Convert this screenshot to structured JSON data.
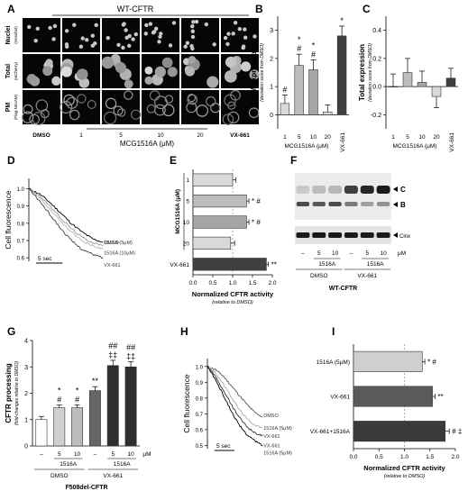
{
  "panels": {
    "A": "A",
    "B": "B",
    "C": "C",
    "D": "D",
    "E": "E",
    "F": "F",
    "G": "G",
    "H": "H",
    "I": "I"
  },
  "panel_a": {
    "title": "WT-CFTR",
    "rows": [
      {
        "label": "Nuclei",
        "sub": "(Hoechst)"
      },
      {
        "label": "Total",
        "sub": "(mCherry)"
      },
      {
        "label": "PM",
        "sub": "(Flag-NIrcAM)"
      }
    ],
    "columns": [
      "DMSO",
      "1",
      "5",
      "10",
      "20",
      "VX-661"
    ],
    "group_label": "MCG1516A (μM)"
  },
  "chart_data": [
    {
      "panel": "B",
      "type": "bar",
      "categories": [
        "1",
        "5",
        "10",
        "20",
        "VX-661"
      ],
      "values": [
        0.4,
        1.75,
        1.6,
        0.1,
        2.8
      ],
      "errors": [
        0.3,
        0.4,
        0.35,
        0.25,
        0.35
      ],
      "colors": [
        "#d9d9d9",
        "#bdbdbd",
        "#a6a6a6",
        "#d9d9d9",
        "#404040"
      ],
      "annotations": [
        [
          "#"
        ],
        [
          "*",
          "#"
        ],
        [
          "*",
          "#"
        ],
        [
          ""
        ],
        [
          "*"
        ]
      ],
      "ylim": [
        -0.5,
        3.5
      ],
      "yticks": [
        0,
        1,
        2,
        3
      ],
      "ylabel": "PM expression",
      "ylabel_sub": "(deviation score from DMSO)",
      "xgroup_label": "MCG1516A (μM)"
    },
    {
      "panel": "C",
      "type": "bar",
      "categories": [
        "1",
        "5",
        "10",
        "20",
        "VX-661"
      ],
      "values": [
        0.0,
        0.1,
        0.03,
        -0.07,
        0.06
      ],
      "errors": [
        0.09,
        0.1,
        0.08,
        0.08,
        0.07
      ],
      "colors": [
        "#d9d9d9",
        "#bdbdbd",
        "#a6a6a6",
        "#d9d9d9",
        "#404040"
      ],
      "ylim": [
        -0.3,
        0.5
      ],
      "yticks": [
        -0.2,
        0.0,
        0.2,
        0.4
      ],
      "ylabel": "Total expression",
      "ylabel_sub": "(deviation score from DMSO)",
      "xgroup_label": "MCG1516A (μM)"
    },
    {
      "panel": "D",
      "type": "line",
      "ylabel": "Cell fluorescence",
      "yticks": [
        0.6,
        0.7,
        0.8,
        0.9,
        1.0
      ],
      "ylim": [
        0.58,
        1.06
      ],
      "xlim": [
        0,
        16
      ],
      "scale_bar": "5 sec",
      "series": [
        {
          "name": "DMSO",
          "color": "#000000",
          "x": [
            0,
            2,
            4,
            6,
            8,
            10,
            12,
            14
          ],
          "y": [
            1.0,
            0.97,
            0.92,
            0.86,
            0.8,
            0.75,
            0.71,
            0.69
          ]
        },
        {
          "name": "1516A (5μM)",
          "color": "#9a9a9a",
          "x": [
            0,
            2,
            4,
            6,
            8,
            10,
            12,
            14
          ],
          "y": [
            1.0,
            0.96,
            0.9,
            0.83,
            0.77,
            0.72,
            0.69,
            0.67
          ]
        },
        {
          "name": "1516A (10μM)",
          "color": "#b5b5b5",
          "x": [
            0,
            2,
            4,
            6,
            8,
            10,
            12,
            14
          ],
          "y": [
            1.0,
            0.95,
            0.88,
            0.81,
            0.75,
            0.7,
            0.67,
            0.65
          ]
        },
        {
          "name": "VX-661",
          "color": "#444444",
          "x": [
            0,
            2,
            4,
            6,
            8,
            10,
            12,
            14
          ],
          "y": [
            1.0,
            0.93,
            0.85,
            0.77,
            0.7,
            0.65,
            0.62,
            0.6
          ]
        }
      ]
    },
    {
      "panel": "E",
      "type": "bar",
      "orientation": "horizontal",
      "categories": [
        "1",
        "5",
        "10",
        "20",
        "VX-661"
      ],
      "values": [
        1.0,
        1.35,
        1.35,
        0.95,
        1.85
      ],
      "errors": [
        0.08,
        0.06,
        0.06,
        0.1,
        0.05
      ],
      "colors": [
        "#d9d9d9",
        "#bdbdbd",
        "#a6a6a6",
        "#d9d9d9",
        "#404040"
      ],
      "annotations": [
        "",
        "* #",
        "* #",
        "",
        "**"
      ],
      "xlim": [
        0,
        2.0
      ],
      "xticks": [
        "0.0",
        "0.5",
        "1.0",
        "1.5",
        "2.0"
      ],
      "xlabel": "Normalized CFTR activity",
      "xlabel_sub": "(relative to DMSO)",
      "ygroup_label": "MCG1516A (μM)"
    },
    {
      "panel": "G",
      "type": "bar",
      "categories": [
        "–",
        "5",
        "10",
        "–",
        "5",
        "10"
      ],
      "values": [
        1.0,
        1.45,
        1.45,
        2.1,
        3.05,
        3.0
      ],
      "errors": [
        0.12,
        0.1,
        0.1,
        0.15,
        0.2,
        0.2
      ],
      "colors": [
        "#ffffff",
        "#d0d0d0",
        "#bdbdbd",
        "#666666",
        "#2f2f2f",
        "#2f2f2f"
      ],
      "annotations": [
        [
          ""
        ],
        [
          "*",
          "#"
        ],
        [
          "*",
          "#"
        ],
        [
          "**"
        ],
        [
          "##",
          "‡‡"
        ],
        [
          "##",
          "‡‡"
        ]
      ],
      "ylim": [
        0,
        4
      ],
      "yticks": [
        0,
        1,
        2,
        3,
        4
      ],
      "ylabel": "CFTR processing",
      "ylabel_sub": "(fold-changes relative to DMSO)",
      "unit": "μM",
      "subgroups": [
        "1516A",
        "1516A"
      ],
      "groups": [
        "DMSO",
        "VX-661"
      ],
      "footer": "F508del-CFTR"
    },
    {
      "panel": "H",
      "type": "line",
      "ylabel": "Cell fluorescence",
      "yticks": [
        0.5,
        0.6,
        0.7,
        0.8,
        0.9,
        1.0
      ],
      "ylim": [
        0.48,
        1.05
      ],
      "xlim": [
        0,
        16
      ],
      "scale_bar": "5 sec",
      "series": [
        {
          "name": "DMSO",
          "color": "#555555",
          "x": [
            0,
            2,
            4,
            6,
            8,
            10,
            12,
            14
          ],
          "y": [
            1.0,
            0.98,
            0.94,
            0.88,
            0.82,
            0.76,
            0.71,
            0.68
          ]
        },
        {
          "name": "1516A (5μM)",
          "color": "#aaaaaa",
          "x": [
            0,
            2,
            4,
            6,
            8,
            10,
            12,
            14
          ],
          "y": [
            1.0,
            0.96,
            0.89,
            0.81,
            0.73,
            0.67,
            0.63,
            0.61
          ]
        },
        {
          "name": "VX-661",
          "color": "#333333",
          "x": [
            0,
            2,
            4,
            6,
            8,
            10,
            12,
            14
          ],
          "y": [
            1.0,
            0.94,
            0.85,
            0.76,
            0.68,
            0.62,
            0.58,
            0.56
          ]
        },
        {
          "name": "VX-661\n1516A (5μM)",
          "color": "#000000",
          "x": [
            0,
            2,
            4,
            6,
            8,
            10,
            12,
            14
          ],
          "y": [
            1.0,
            0.92,
            0.82,
            0.72,
            0.63,
            0.57,
            0.53,
            0.5
          ]
        }
      ]
    },
    {
      "panel": "I",
      "type": "bar",
      "orientation": "horizontal",
      "categories": [
        "1516A (5μM)",
        "VX-661",
        "VX-661+1516A"
      ],
      "values": [
        1.35,
        1.55,
        1.8
      ],
      "errors": [
        0.05,
        0.05,
        0.08
      ],
      "colors": [
        "#cfcfcf",
        "#5a5a5a",
        "#3a3a3a"
      ],
      "annotations": [
        "* #",
        "**",
        "# ‡"
      ],
      "xlim": [
        0,
        2.0
      ],
      "xticks": [
        "0.0",
        "0.5",
        "1.0",
        "1.5",
        "2.0"
      ],
      "xlabel": "Normalized CFTR activity",
      "xlabel_sub": "(relative to DMSO)"
    }
  ],
  "panel_f": {
    "band_labels": [
      "C",
      "B",
      "Clnx"
    ],
    "lanes": [
      "–",
      "5",
      "10",
      "–",
      "5",
      "10"
    ],
    "unit": "μM",
    "subgroups": [
      "1516A",
      "1516A"
    ],
    "groups": [
      "DMSO",
      "VX-661"
    ],
    "footer": "WT-CFTR"
  }
}
